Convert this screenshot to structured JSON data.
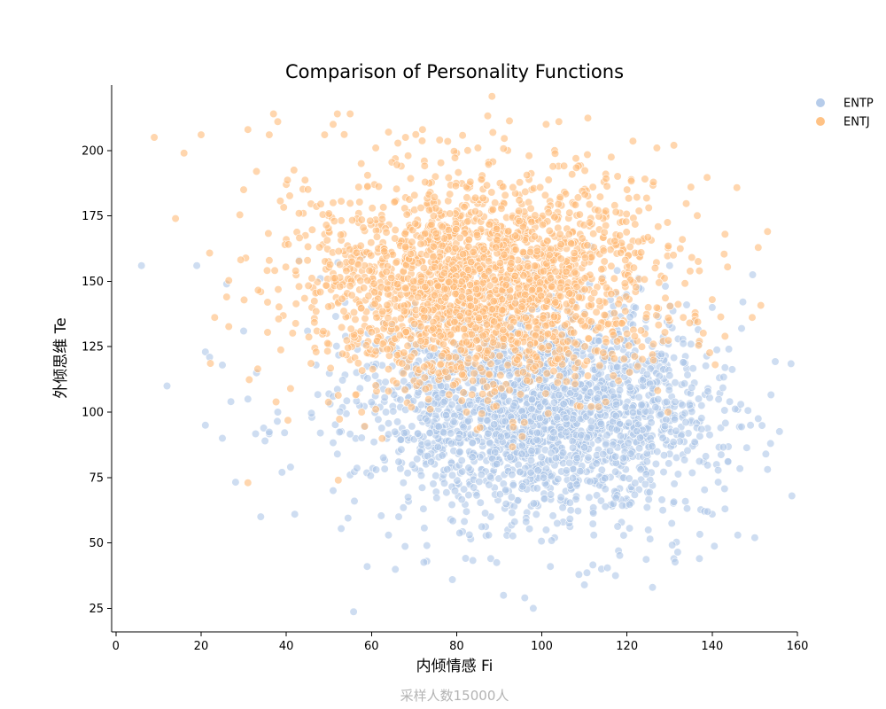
{
  "chart_data": {
    "type": "scatter",
    "title": "Comparison of Personality Functions",
    "xlabel": "内倾情感 Fi",
    "ylabel": "外倾思维 Te",
    "footer": "采样人数15000人",
    "xlim": [
      -1,
      160
    ],
    "ylim": [
      16,
      225
    ],
    "xticks": [
      0,
      20,
      40,
      60,
      80,
      100,
      120,
      140,
      160
    ],
    "yticks": [
      25,
      50,
      75,
      100,
      125,
      150,
      175,
      200
    ],
    "grid": false,
    "legend_position": "top-right",
    "marker_alpha": 0.6,
    "series": [
      {
        "name": "ENTP",
        "color": "#aec7e8",
        "center_x": 100,
        "center_y": 100,
        "spread_x": 20,
        "spread_y": 20,
        "sample_count": 2200,
        "points": [
          [
            6,
            156
          ],
          [
            12,
            110
          ],
          [
            19,
            156
          ],
          [
            21,
            95
          ],
          [
            21,
            123
          ],
          [
            22,
            121
          ],
          [
            25,
            90
          ],
          [
            25,
            118
          ],
          [
            26,
            149
          ],
          [
            27,
            104
          ],
          [
            30,
            131
          ],
          [
            31,
            105
          ],
          [
            33,
            115
          ],
          [
            34,
            60
          ],
          [
            35,
            89
          ],
          [
            38,
            100
          ],
          [
            39,
            77
          ],
          [
            41,
            79
          ],
          [
            42,
            61
          ],
          [
            46,
            98
          ],
          [
            51,
            70
          ],
          [
            56,
            66
          ],
          [
            59,
            41
          ],
          [
            64,
            53
          ],
          [
            73,
            43
          ],
          [
            73,
            49
          ],
          [
            79,
            36
          ],
          [
            88,
            44
          ],
          [
            91,
            30
          ],
          [
            96,
            29
          ],
          [
            98,
            25
          ],
          [
            110,
            34
          ],
          [
            102,
            41
          ],
          [
            114,
            40
          ],
          [
            118,
            47
          ],
          [
            126,
            33
          ],
          [
            131,
            44
          ],
          [
            137,
            44
          ],
          [
            140,
            61
          ],
          [
            143,
            63
          ],
          [
            146,
            53
          ],
          [
            149,
            95
          ],
          [
            150,
            52
          ],
          [
            146,
            101
          ],
          [
            143,
            117
          ],
          [
            139,
            109
          ],
          [
            135,
            96
          ],
          [
            138,
            81
          ],
          [
            141,
            80
          ],
          [
            132,
            128
          ],
          [
            135,
            126
          ],
          [
            140,
            140
          ],
          [
            130,
            156
          ],
          [
            60,
            140
          ],
          [
            65,
            130
          ],
          [
            43,
            158
          ],
          [
            45,
            131
          ],
          [
            47,
            118
          ],
          [
            50,
            107
          ],
          [
            48,
            92
          ],
          [
            52,
            84
          ],
          [
            55,
            76
          ],
          [
            88,
            60
          ],
          [
            92,
            55
          ],
          [
            105,
            58
          ],
          [
            112,
            62
          ],
          [
            120,
            66
          ],
          [
            126,
            72
          ],
          [
            130,
            84
          ],
          [
            120,
            120
          ],
          [
            124,
            112
          ],
          [
            110,
            125
          ],
          [
            100,
            130
          ],
          [
            90,
            128
          ],
          [
            80,
            126
          ],
          [
            70,
            124
          ],
          [
            74,
            100
          ],
          [
            83,
            97
          ],
          [
            94,
            92
          ],
          [
            103,
            96
          ],
          [
            114,
            90
          ],
          [
            123,
            94
          ],
          [
            118,
            80
          ],
          [
            108,
            76
          ],
          [
            98,
            74
          ],
          [
            86,
            78
          ],
          [
            77,
            84
          ],
          [
            68,
            92
          ],
          [
            63,
            104
          ],
          [
            70,
            112
          ],
          [
            81,
            115
          ],
          [
            96,
            110
          ],
          [
            111,
            108
          ],
          [
            127,
            104
          ],
          [
            133,
            99
          ],
          [
            136,
            88
          ]
        ]
      },
      {
        "name": "ENTJ",
        "color": "#ffbb78",
        "center_x": 85,
        "center_y": 150,
        "spread_x": 20,
        "spread_y": 20,
        "sample_count": 2200,
        "points": [
          [
            9,
            205
          ],
          [
            14,
            174
          ],
          [
            16,
            199
          ],
          [
            20,
            206
          ],
          [
            26,
            144
          ],
          [
            30,
            185
          ],
          [
            31,
            208
          ],
          [
            31,
            73
          ],
          [
            33,
            192
          ],
          [
            36,
            206
          ],
          [
            37,
            214
          ],
          [
            38,
            211
          ],
          [
            40,
            187
          ],
          [
            41,
            109
          ],
          [
            43,
            148
          ],
          [
            45,
            158
          ],
          [
            49,
            206
          ],
          [
            51,
            210
          ],
          [
            52,
            214
          ],
          [
            55,
            214
          ],
          [
            57,
            186
          ],
          [
            59,
            186
          ],
          [
            61,
            201
          ],
          [
            64,
            207
          ],
          [
            68,
            205
          ],
          [
            72,
            208
          ],
          [
            76,
            204
          ],
          [
            80,
            199
          ],
          [
            85,
            201
          ],
          [
            92,
            200
          ],
          [
            97,
            198
          ],
          [
            101,
            210
          ],
          [
            104,
            211
          ],
          [
            103,
            200
          ],
          [
            108,
            197
          ],
          [
            112,
            186
          ],
          [
            115,
            191
          ],
          [
            120,
            185
          ],
          [
            127,
            201
          ],
          [
            131,
            202
          ],
          [
            135,
            186
          ],
          [
            133,
            166
          ],
          [
            137,
            154
          ],
          [
            140,
            143
          ],
          [
            143,
            168
          ],
          [
            143,
            129
          ],
          [
            153,
            169
          ],
          [
            136,
            138
          ],
          [
            130,
            135
          ],
          [
            125,
            140
          ],
          [
            120,
            130
          ],
          [
            115,
            128
          ],
          [
            110,
            118
          ],
          [
            104,
            126
          ],
          [
            99,
            120
          ],
          [
            92,
            118
          ],
          [
            86,
            122
          ],
          [
            78,
            118
          ],
          [
            72,
            128
          ],
          [
            66,
            120
          ],
          [
            60,
            132
          ],
          [
            55,
            120
          ],
          [
            50,
            126
          ],
          [
            46,
            140
          ],
          [
            52,
            150
          ],
          [
            58,
            160
          ],
          [
            62,
            172
          ],
          [
            68,
            182
          ],
          [
            74,
            178
          ],
          [
            82,
            170
          ],
          [
            90,
            166
          ],
          [
            98,
            160
          ],
          [
            106,
            156
          ],
          [
            114,
            150
          ],
          [
            122,
            146
          ],
          [
            128,
            152
          ],
          [
            119,
            162
          ],
          [
            109,
            168
          ],
          [
            100,
            174
          ],
          [
            91,
            180
          ],
          [
            83,
            186
          ],
          [
            75,
            190
          ],
          [
            67,
            194
          ],
          [
            57,
            176
          ],
          [
            49,
            168
          ],
          [
            44,
            176
          ],
          [
            40,
            166
          ],
          [
            36,
            158
          ],
          [
            34,
            146
          ],
          [
            64,
            108
          ],
          [
            70,
            112
          ],
          [
            118,
            112
          ],
          [
            126,
            122
          ],
          [
            96,
            140
          ],
          [
            84,
            146
          ],
          [
            76,
            150
          ]
        ]
      }
    ]
  }
}
